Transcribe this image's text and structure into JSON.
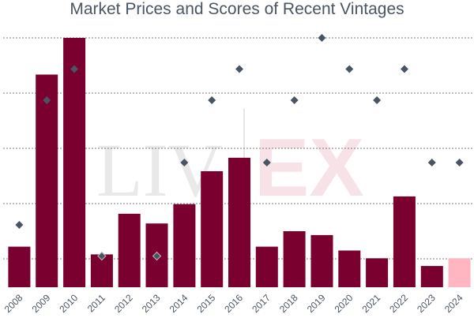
{
  "chart_data": {
    "type": "bar",
    "title": "Market Prices and Scores of Recent Vintages",
    "categories": [
      "2008",
      "2009",
      "2010",
      "2011",
      "2012",
      "2013",
      "2014",
      "2015",
      "2016",
      "2017",
      "2018",
      "2019",
      "2020",
      "2021",
      "2022",
      "2023",
      "2024"
    ],
    "series": [
      {
        "kind": "bar",
        "values": [
          21,
          110,
          129,
          17,
          38,
          33,
          43,
          60,
          67,
          21,
          29,
          27,
          19,
          15,
          47,
          11,
          15
        ],
        "colors": [
          "#7a0030",
          "#7a0030",
          "#7a0030",
          "#7a0030",
          "#7a0030",
          "#7a0030",
          "#7a0030",
          "#7a0030",
          "#7a0030",
          "#7a0030",
          "#7a0030",
          "#7a0030",
          "#7a0030",
          "#7a0030",
          "#7a0030",
          "#7a0030",
          "#ffb6c1"
        ]
      },
      {
        "kind": "scatter",
        "values": [
          92,
          96,
          97,
          91,
          null,
          91,
          94,
          96,
          97,
          94,
          96,
          98,
          97,
          96,
          97,
          94,
          94
        ],
        "color": "#4a5563"
      }
    ],
    "bar_ylim": [
      0,
      129
    ],
    "score_ylim": [
      90,
      98
    ],
    "grid": true,
    "watermark": "LIV-EX"
  }
}
